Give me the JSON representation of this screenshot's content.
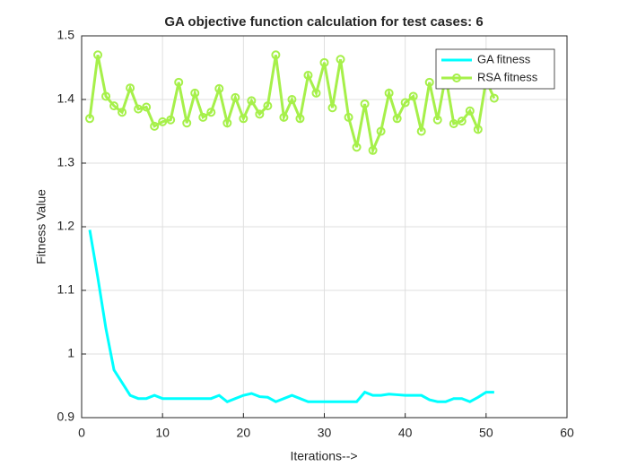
{
  "chart_data": {
    "type": "line",
    "title": "GA objective function calculation for test cases: 6",
    "xlabel": "Iterations-->",
    "ylabel": "Fitness Value",
    "x": [
      1,
      2,
      3,
      4,
      5,
      6,
      7,
      8,
      9,
      10,
      11,
      12,
      13,
      14,
      15,
      16,
      17,
      18,
      19,
      20,
      21,
      22,
      23,
      24,
      25,
      26,
      27,
      28,
      29,
      30,
      31,
      32,
      33,
      34,
      35,
      36,
      37,
      38,
      39,
      40,
      41,
      42,
      43,
      44,
      45,
      46,
      47,
      48,
      49,
      50,
      51
    ],
    "series": [
      {
        "name": "GA fitness",
        "color": "#00ffff",
        "marker": false,
        "values": [
          1.195,
          1.12,
          1.04,
          0.975,
          0.955,
          0.935,
          0.93,
          0.93,
          0.935,
          0.93,
          0.93,
          0.93,
          0.93,
          0.93,
          0.93,
          0.93,
          0.935,
          0.925,
          0.93,
          0.935,
          0.938,
          0.933,
          0.932,
          0.925,
          0.93,
          0.935,
          0.93,
          0.925,
          0.925,
          0.925,
          0.925,
          0.925,
          0.925,
          0.925,
          0.94,
          0.935,
          0.935,
          0.937,
          0.936,
          0.935,
          0.935,
          0.935,
          0.928,
          0.925,
          0.925,
          0.93,
          0.93,
          0.925,
          0.932,
          0.94,
          0.94
        ]
      },
      {
        "name": "RSA fitness",
        "color": "#a6f04a",
        "marker": true,
        "values": [
          1.37,
          1.47,
          1.405,
          1.39,
          1.38,
          1.418,
          1.385,
          1.388,
          1.358,
          1.365,
          1.368,
          1.427,
          1.363,
          1.41,
          1.372,
          1.38,
          1.417,
          1.363,
          1.403,
          1.37,
          1.398,
          1.377,
          1.39,
          1.47,
          1.372,
          1.4,
          1.37,
          1.438,
          1.41,
          1.458,
          1.387,
          1.463,
          1.372,
          1.325,
          1.393,
          1.32,
          1.35,
          1.41,
          1.37,
          1.395,
          1.405,
          1.35,
          1.427,
          1.368,
          1.437,
          1.362,
          1.366,
          1.382,
          1.353,
          1.43,
          1.402
        ]
      }
    ],
    "xlim": [
      0,
      60
    ],
    "xticks": [
      0,
      10,
      20,
      30,
      40,
      50,
      60
    ],
    "ylim": [
      0.9,
      1.5
    ],
    "yticks": [
      0.9,
      1,
      1.1,
      1.2,
      1.3,
      1.4,
      1.5
    ],
    "grid": true,
    "legend": "northeast"
  }
}
